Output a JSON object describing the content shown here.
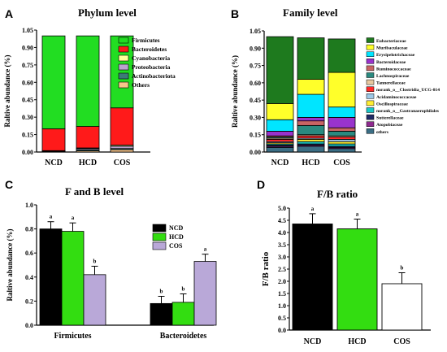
{
  "panels": {
    "A": {
      "letter": "A",
      "title": "Phylum level",
      "ylabel": "Raltive abundance (%)"
    },
    "B": {
      "letter": "B",
      "title": "Family  level",
      "ylabel": "Raltive abundance (%)"
    },
    "C": {
      "letter": "C",
      "title": "F and B level",
      "ylabel": "Raltive abundance (%)"
    },
    "D": {
      "letter": "D",
      "title": "F/B ratio",
      "ylabel": "F/B ratio"
    }
  },
  "chart_data": [
    {
      "panel": "A",
      "type": "bar",
      "stacked": true,
      "title": "Phylum level",
      "ylabel": "Raltive abundance (%)",
      "categories": [
        "NCD",
        "HCD",
        "COS"
      ],
      "ylim": [
        0,
        1.0
      ],
      "yticks": [
        "0.00",
        "0.15",
        "0.30",
        "0.45",
        "0.60",
        "0.75",
        "0.90",
        "1.05"
      ],
      "series": [
        {
          "name": "Others",
          "color": "#f7c58b",
          "values": [
            0.005,
            0.01,
            0.02
          ]
        },
        {
          "name": "Actinobacteriota",
          "color": "#3d7a78",
          "values": [
            0.002,
            0.01,
            0.01
          ]
        },
        {
          "name": "Proteobacteria",
          "color": "#b9a3cf",
          "values": [
            0.003,
            0.01,
            0.02
          ]
        },
        {
          "name": "Cyanobacteria",
          "color": "#ffff99",
          "values": [
            0.002,
            0.005,
            0.01
          ]
        },
        {
          "name": "Bacteroidetes",
          "color": "#ff1a1a",
          "values": [
            0.188,
            0.185,
            0.32
          ]
        },
        {
          "name": "Firmicutes",
          "color": "#22dd22",
          "values": [
            0.8,
            0.78,
            0.62
          ]
        }
      ],
      "legend_order": [
        "Firmicutes",
        "Bacteroidetes",
        "Cyanobacteria",
        "Proteobacteria",
        "Actinobacteriota",
        "Others"
      ]
    },
    {
      "panel": "B",
      "type": "bar",
      "stacked": true,
      "title": "Family  level",
      "ylabel": "Raltive abundance (%)",
      "categories": [
        "NCD",
        "HCD",
        "COS"
      ],
      "ylim": [
        0,
        1.0
      ],
      "yticks": [
        "0.00",
        "0.15",
        "0.30",
        "0.45",
        "0.60",
        "0.75",
        "0.90",
        "1.05"
      ],
      "series": [
        {
          "name": "others",
          "color": "#3b6e85",
          "values": [
            0.04,
            0.05,
            0.03
          ]
        },
        {
          "name": "Atopobiaceae",
          "color": "#8e2a8e",
          "values": [
            0.01,
            0.01,
            0.01
          ]
        },
        {
          "name": "Sutterellaceae",
          "color": "#1f2a66",
          "values": [
            0.01,
            0.01,
            0.01
          ]
        },
        {
          "name": "norank_o__Gastranaerophilales",
          "color": "#19c7c7",
          "values": [
            0.01,
            0.02,
            0.02
          ]
        },
        {
          "name": "Oscillospiraceae",
          "color": "#ffee33",
          "values": [
            0.01,
            0.02,
            0.02
          ]
        },
        {
          "name": "Acidaminococcaceae",
          "color": "#9ec9e8",
          "values": [
            0.01,
            0.01,
            0.02
          ]
        },
        {
          "name": "norank_o__Clostridia_UCG-014",
          "color": "#ff2a2a",
          "values": [
            0.02,
            0.02,
            0.02
          ]
        },
        {
          "name": "Tannerellaceae",
          "color": "#e8c9a0",
          "values": [
            0.01,
            0.01,
            0.01
          ]
        },
        {
          "name": "Lachnospiraceae",
          "color": "#2a8a80",
          "values": [
            0.01,
            0.08,
            0.04
          ]
        },
        {
          "name": "Ruminococcaceae",
          "color": "#c86464",
          "values": [
            0.01,
            0.04,
            0.03
          ]
        },
        {
          "name": "Bacteroidaceae",
          "color": "#9933cc",
          "values": [
            0.04,
            0.03,
            0.09
          ]
        },
        {
          "name": "Erysipelotrichaceae",
          "color": "#00e5ff",
          "values": [
            0.1,
            0.2,
            0.09
          ]
        },
        {
          "name": "Muribaculaceae",
          "color": "#ffff2a",
          "values": [
            0.14,
            0.13,
            0.3
          ]
        },
        {
          "name": "Eubacteriaceae",
          "color": "#1e7a1e",
          "values": [
            0.58,
            0.36,
            0.29
          ]
        }
      ],
      "legend_order": [
        "Eubacteriaceae",
        "Muribaculaceae",
        "Erysipelotrichaceae",
        "Bacteroidaceae",
        "Ruminococcaceae",
        "Lachnospiraceae",
        "Tannerellaceae",
        "norank_o__Clostridia_UCG-014",
        "Acidaminococcaceae",
        "Oscillospiraceae",
        "norank_o__Gastranaerophilales",
        "Sutterellaceae",
        "Atopobiaceae",
        "others"
      ]
    },
    {
      "panel": "C",
      "type": "bar",
      "title": "F and B level",
      "ylabel": "Raltive abundance (%)",
      "categories": [
        "Firmicutes",
        "Bacteroidetes"
      ],
      "ylim": [
        0,
        1.0
      ],
      "yticks": [
        "0.0",
        "0.2",
        "0.4",
        "0.6",
        "0.8",
        "1.0"
      ],
      "series": [
        {
          "name": "NCD",
          "color": "#000000",
          "values": [
            0.8,
            0.18
          ],
          "errors": [
            0.06,
            0.06
          ],
          "sig": [
            "a",
            "b"
          ]
        },
        {
          "name": "HCD",
          "color": "#33dd11",
          "values": [
            0.78,
            0.19
          ],
          "errors": [
            0.07,
            0.07
          ],
          "sig": [
            "a",
            "b"
          ]
        },
        {
          "name": "COS",
          "color": "#b9a8d8",
          "values": [
            0.42,
            0.53
          ],
          "errors": [
            0.07,
            0.06
          ],
          "sig": [
            "b",
            "a"
          ]
        }
      ]
    },
    {
      "panel": "D",
      "type": "bar",
      "title": "F/B ratio",
      "ylabel": "F/B ratio",
      "categories": [
        "NCD",
        "HCD",
        "COS"
      ],
      "ylim": [
        0,
        5.0
      ],
      "yticks": [
        "0.0",
        "0.5",
        "1.0",
        "1.5",
        "2.0",
        "2.5",
        "3.0",
        "3.5",
        "4.0",
        "4.5",
        "5.0"
      ],
      "values": [
        4.35,
        4.15,
        1.9
      ],
      "errors": [
        0.42,
        0.4,
        0.45
      ],
      "colors": [
        "#000000",
        "#33dd11",
        "#ffffff"
      ],
      "sig": [
        "a",
        "a",
        "b"
      ]
    }
  ]
}
